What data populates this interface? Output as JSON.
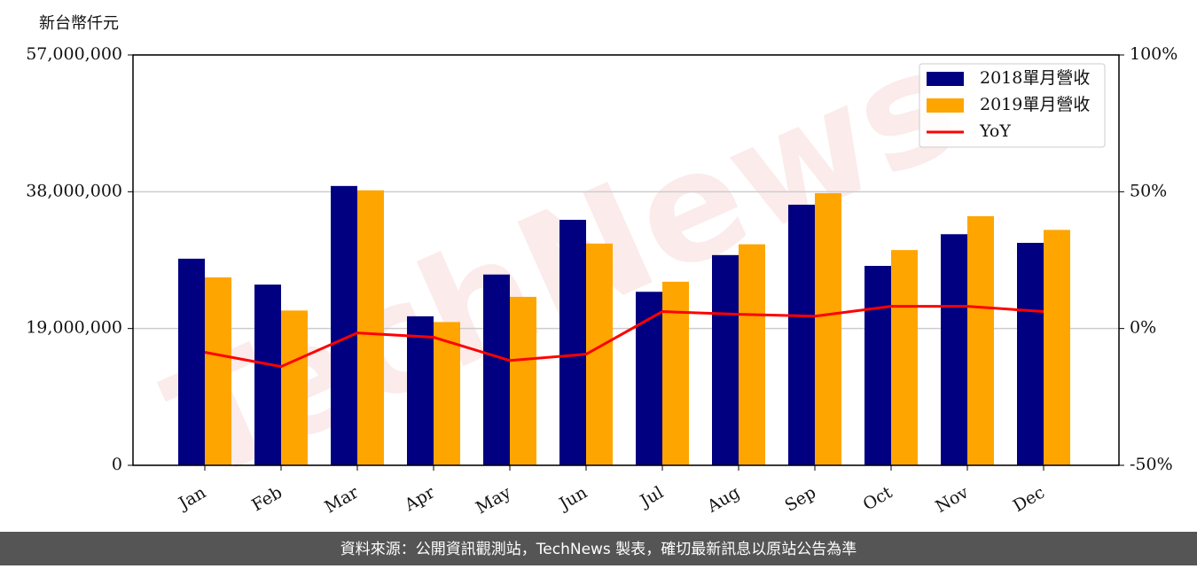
{
  "chart_data": {
    "type": "bar",
    "y_label": "新台幣仟元",
    "watermark": "TechNews",
    "categories": [
      "Jan",
      "Feb",
      "Mar",
      "Apr",
      "May",
      "Jun",
      "Jul",
      "Aug",
      "Sep",
      "Oct",
      "Nov",
      "Dec"
    ],
    "series": [
      {
        "name": "2018單月營收",
        "color": "#000080",
        "type": "bar",
        "values": [
          28700000,
          25100000,
          38800000,
          20700000,
          26500000,
          34100000,
          24100000,
          29200000,
          36200000,
          27700000,
          32100000,
          30900000
        ]
      },
      {
        "name": "2019單月營收",
        "color": "#ffa500",
        "type": "bar",
        "values": [
          26100000,
          21500000,
          38200000,
          19900000,
          23400000,
          30800000,
          25500000,
          30700000,
          37800000,
          29900000,
          34600000,
          32700000
        ]
      },
      {
        "name": "YoY",
        "color": "#ff0000",
        "type": "line",
        "axis": "y2",
        "values": [
          -8.7,
          -13.9,
          -1.6,
          -3.2,
          -11.7,
          -9.4,
          6.2,
          5.2,
          4.5,
          8.1,
          8.1,
          6.2
        ]
      }
    ],
    "ylim": [
      0,
      57000000
    ],
    "yticks": [
      {
        "value": 0,
        "label": "0"
      },
      {
        "value": 19000000,
        "label": "19,000,000"
      },
      {
        "value": 38000000,
        "label": "38,000,000"
      },
      {
        "value": 57000000,
        "label": "57,000,000"
      }
    ],
    "y2lim": [
      -50,
      100
    ],
    "y2ticks": [
      {
        "value": -50,
        "label": "-50%"
      },
      {
        "value": 0,
        "label": "0%"
      },
      {
        "value": 50,
        "label": "50%"
      },
      {
        "value": 100,
        "label": "100%"
      }
    ],
    "grid": true,
    "legend": "upper right"
  },
  "footer": "資料來源：公開資訊觀測站，TechNews 製表，確切最新訊息以原站公告為準"
}
